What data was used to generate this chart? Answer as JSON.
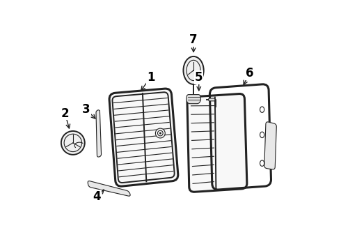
{
  "bg_color": "#ffffff",
  "line_color": "#222222",
  "label_color": "#000000",
  "label_fontsize": 12,
  "label_fontweight": "bold",
  "figsize": [
    4.9,
    3.6
  ],
  "dpi": 100
}
